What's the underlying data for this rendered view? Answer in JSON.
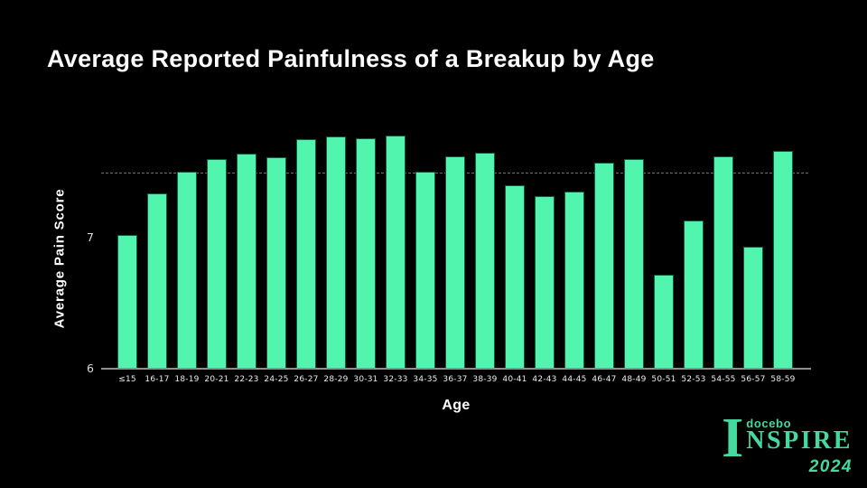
{
  "slide": {
    "background": "#000000"
  },
  "chart_data": {
    "type": "bar",
    "title": "Average Reported Painfulness of a Breakup by Age",
    "xlabel": "Age",
    "ylabel": "Average Pain Score",
    "categories": [
      "≤15",
      "16-17",
      "18-19",
      "20-21",
      "22-23",
      "24-25",
      "26-27",
      "28-29",
      "30-31",
      "32-33",
      "34-35",
      "36-37",
      "38-39",
      "40-41",
      "42-43",
      "44-45",
      "46-47",
      "48-49",
      "50-51",
      "52-53",
      "54-55",
      "56-57",
      "58-59"
    ],
    "values": [
      7.01,
      7.33,
      7.49,
      7.59,
      7.63,
      7.6,
      7.74,
      7.76,
      7.75,
      7.77,
      7.49,
      7.61,
      7.64,
      7.39,
      7.31,
      7.34,
      7.56,
      7.59,
      6.71,
      7.12,
      7.61,
      6.92,
      7.65
    ],
    "ylim": [
      6,
      7.85
    ],
    "yticks": [
      6,
      7
    ],
    "reference_line": {
      "value": 7.5,
      "style": "dashed",
      "color": "#6f6f6f"
    },
    "bar_color": "#52f5ae",
    "bar_border_color": "#0e5c40",
    "axis_color": "#8f8f8f",
    "text_color": "#ffffff",
    "legend_position": "none",
    "grid": "single dashed horizontal reference line at 7.5"
  },
  "logo": {
    "initial": "I",
    "brand": "docebo",
    "word": "NSPIRE",
    "year": "2024",
    "color": "#45d9a0"
  }
}
